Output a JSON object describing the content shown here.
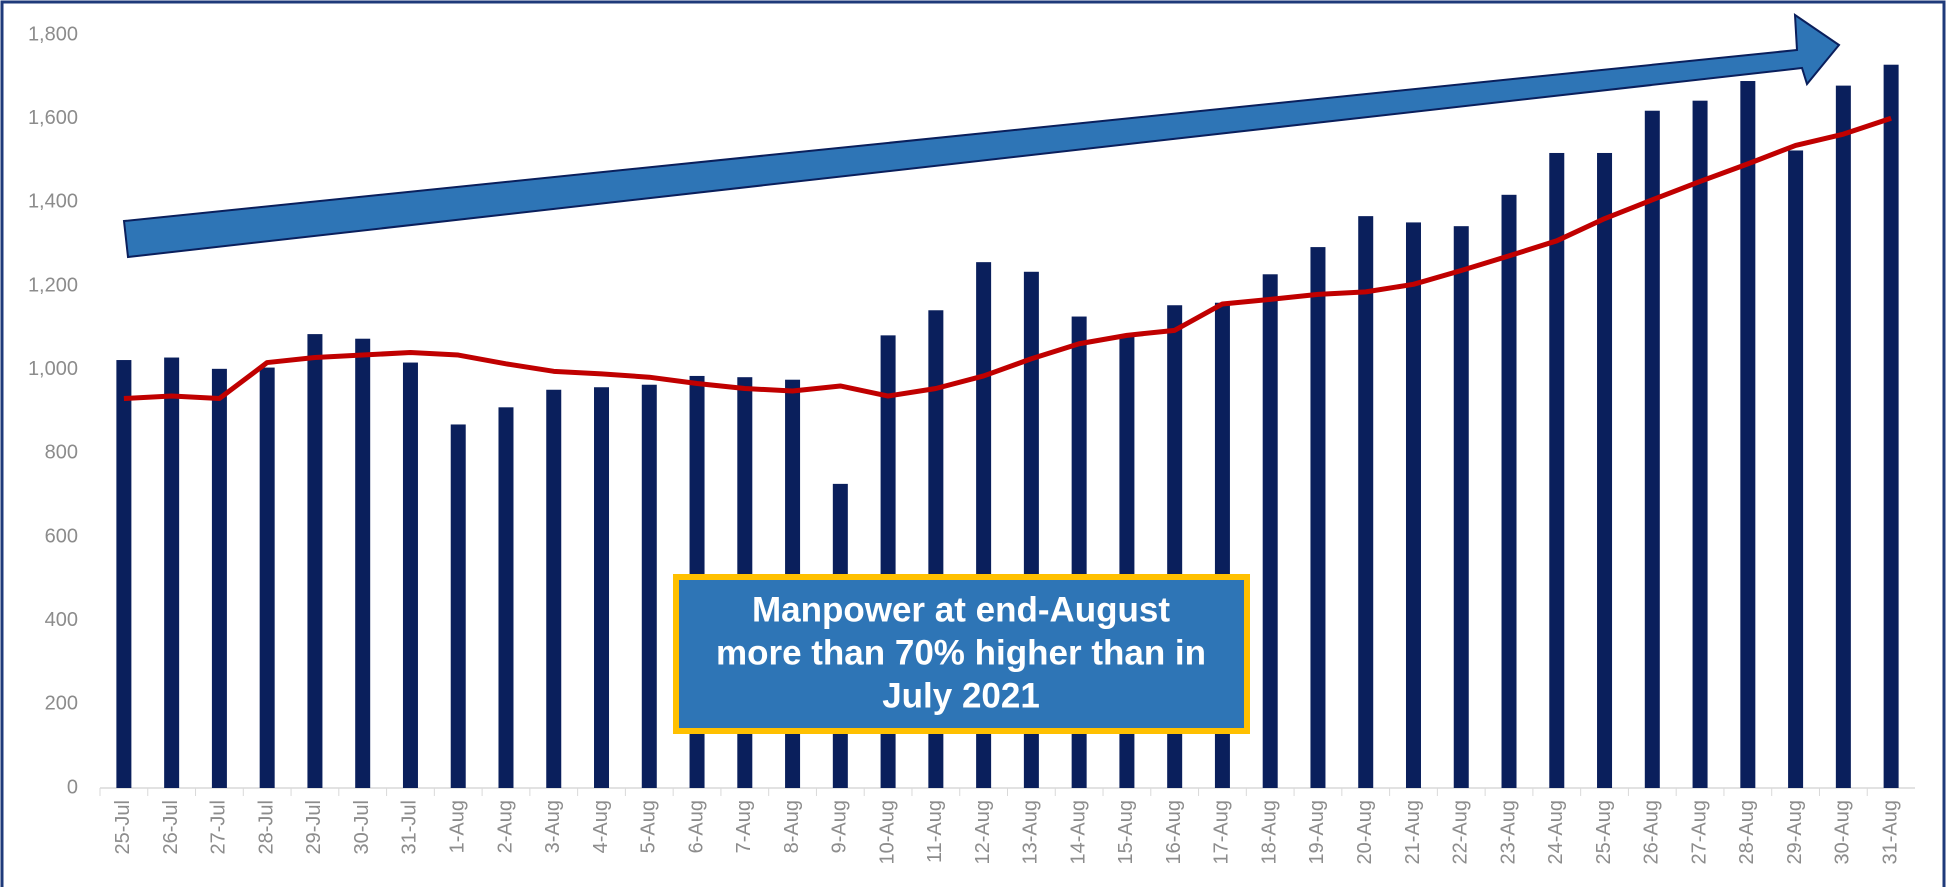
{
  "chart_data": {
    "type": "bar",
    "categories": [
      "25-Jul",
      "26-Jul",
      "27-Jul",
      "28-Jul",
      "29-Jul",
      "30-Jul",
      "31-Jul",
      "1-Aug",
      "2-Aug",
      "3-Aug",
      "4-Aug",
      "5-Aug",
      "6-Aug",
      "7-Aug",
      "8-Aug",
      "9-Aug",
      "10-Aug",
      "11-Aug",
      "12-Aug",
      "13-Aug",
      "14-Aug",
      "15-Aug",
      "16-Aug",
      "17-Aug",
      "18-Aug",
      "19-Aug",
      "20-Aug",
      "21-Aug",
      "22-Aug",
      "23-Aug",
      "24-Aug",
      "25-Aug",
      "26-Aug",
      "27-Aug",
      "28-Aug",
      "29-Aug",
      "30-Aug",
      "31-Aug"
    ],
    "series": [
      {
        "type": "bar",
        "color": "#0a1f5c",
        "values": [
          1023,
          1029,
          1002,
          1005,
          1085,
          1074,
          1017,
          869,
          910,
          952,
          958,
          964,
          985,
          982,
          976,
          727,
          1082,
          1142,
          1257,
          1234,
          1127,
          1082,
          1154,
          1160,
          1228,
          1293,
          1367,
          1352,
          1343,
          1418,
          1518,
          1518,
          1619,
          1643,
          1690,
          1524,
          1679,
          1729
        ]
      },
      {
        "type": "line",
        "color": "#c00000",
        "values": [
          931,
          937,
          931,
          1017,
          1029,
          1035,
          1041,
          1035,
          1014,
          996,
          990,
          982,
          967,
          955,
          949,
          961,
          937,
          955,
          985,
          1026,
          1062,
          1082,
          1094,
          1157,
          1168,
          1180,
          1186,
          1204,
          1237,
          1272,
          1308,
          1361,
          1406,
          1450,
          1492,
          1536,
          1563,
          1601
        ]
      }
    ],
    "ylim": [
      0,
      1800
    ],
    "yticks": [
      0,
      200,
      400,
      600,
      800,
      {
        "value": 1000,
        "label": "1,000"
      },
      {
        "value": 1200,
        "label": "1,200"
      },
      {
        "value": 1400,
        "label": "1,400"
      },
      {
        "value": 1600,
        "label": "1,600"
      },
      {
        "value": 1800,
        "label": "1,800"
      }
    ],
    "annotation": [
      "Manpower at end-August",
      "more than 70% higher than in",
      "July 2021"
    ]
  }
}
